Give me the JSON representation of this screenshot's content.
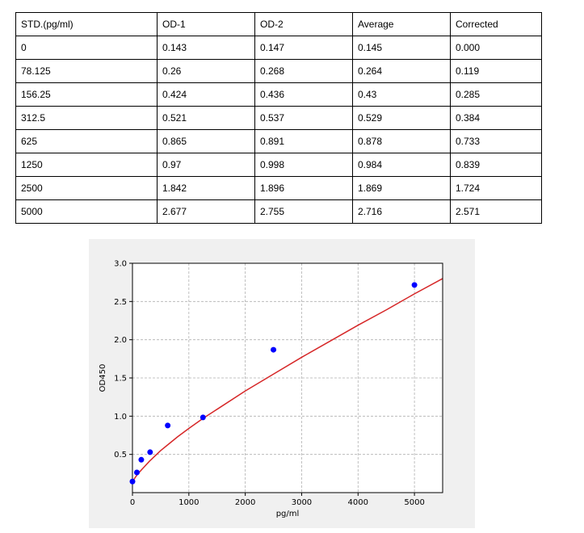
{
  "table": {
    "headers": [
      "STD.(pg/ml)",
      "OD-1",
      "OD-2",
      "Average",
      "Corrected"
    ],
    "rows": [
      [
        "0",
        "0.143",
        "0.147",
        "0.145",
        "0.000"
      ],
      [
        "78.125",
        "0.26",
        "0.268",
        "0.264",
        "0.119"
      ],
      [
        "156.25",
        "0.424",
        "0.436",
        "0.43",
        "0.285"
      ],
      [
        "312.5",
        "0.521",
        "0.537",
        "0.529",
        "0.384"
      ],
      [
        "625",
        "0.865",
        "0.891",
        "0.878",
        "0.733"
      ],
      [
        "1250",
        "0.97",
        "0.998",
        "0.984",
        "0.839"
      ],
      [
        "2500",
        "1.842",
        "1.896",
        "1.869",
        "1.724"
      ],
      [
        "5000",
        "2.677",
        "2.755",
        "2.716",
        "2.571"
      ]
    ]
  },
  "chart_data": {
    "type": "scatter",
    "title": "",
    "xlabel": "pg/ml",
    "ylabel": "OD450",
    "xlim": [
      0,
      5500
    ],
    "ylim": [
      0.0,
      3.0
    ],
    "xticks": [
      0,
      1000,
      2000,
      3000,
      4000,
      5000
    ],
    "xtick_labels": [
      "0",
      "1000",
      "2000",
      "3000",
      "4000",
      "5000"
    ],
    "yticks": [
      0.5,
      1.0,
      1.5,
      2.0,
      2.5,
      3.0
    ],
    "ytick_labels": [
      "0.5",
      "1.0",
      "1.5",
      "2.0",
      "2.5",
      "3.0"
    ],
    "grid": true,
    "points": {
      "x": [
        0,
        78.125,
        156.25,
        312.5,
        625,
        1250,
        2500,
        5000
      ],
      "y": [
        0.145,
        0.264,
        0.43,
        0.529,
        0.878,
        0.984,
        1.869,
        2.716
      ],
      "color": "#0000ff"
    },
    "fit_curve": {
      "x": [
        0,
        50,
        100,
        200,
        300,
        400,
        500,
        600,
        800,
        1000,
        1250,
        1500,
        2000,
        2500,
        3000,
        3500,
        4000,
        4500,
        5000,
        5500
      ],
      "y": [
        0.145,
        0.2,
        0.25,
        0.33,
        0.41,
        0.48,
        0.55,
        0.61,
        0.73,
        0.84,
        0.97,
        1.09,
        1.33,
        1.55,
        1.77,
        1.98,
        2.19,
        2.39,
        2.6,
        2.8
      ],
      "color": "#d62728"
    }
  }
}
